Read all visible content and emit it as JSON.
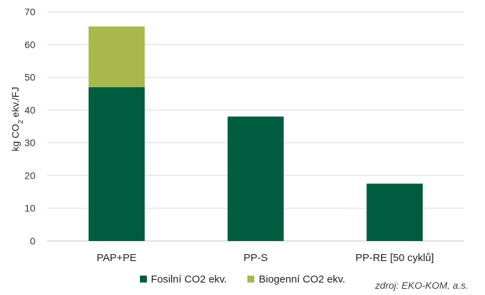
{
  "chart_data": {
    "type": "bar",
    "stacked": true,
    "categories": [
      "PAP+PE",
      "PP-S",
      "PP-RE [50 cyklů]"
    ],
    "series": [
      {
        "name": "Fosilní CO2 ekv.",
        "values": [
          47,
          38,
          17.5
        ],
        "color": "#005c3e"
      },
      {
        "name": "Biogenní CO2 ekv.",
        "values": [
          18.5,
          0,
          0
        ],
        "color": "#a8b84c"
      }
    ],
    "ylabel": {
      "main": "kg CO",
      "sub": "2",
      "rest": " ekv./FJ"
    },
    "ylim": [
      0,
      70
    ],
    "yticks": [
      0,
      10,
      20,
      30,
      40,
      50,
      60,
      70
    ],
    "grid": true,
    "legend_position": "bottom",
    "source": "zdroj: EKO-KOM, a.s."
  }
}
